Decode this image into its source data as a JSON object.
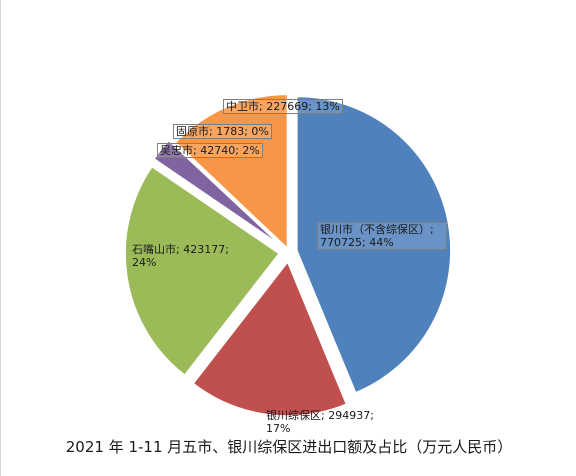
{
  "chart_data": {
    "type": "pie",
    "title": "2021 年 1-11 月五市、银川综保区进出口额及占比（万元人民币）",
    "slices": [
      {
        "name": "银川市（不含综保区）",
        "value": 770725,
        "percent": "44%",
        "color": "#4f81bd"
      },
      {
        "name": "银川综保区",
        "value": 294937,
        "percent": "17%",
        "color": "#c0504d"
      },
      {
        "name": "石嘴山市",
        "value": 423177,
        "percent": "24%",
        "color": "#9bbb59"
      },
      {
        "name": "吴忠市",
        "value": 42740,
        "percent": "2%",
        "color": "#8064a2"
      },
      {
        "name": "固原市",
        "value": 1783,
        "percent": "0%",
        "color": "#4bacc6"
      },
      {
        "name": "中卫市",
        "value": 227669,
        "percent": "13%",
        "color": "#f79646"
      }
    ],
    "legend": "none"
  }
}
